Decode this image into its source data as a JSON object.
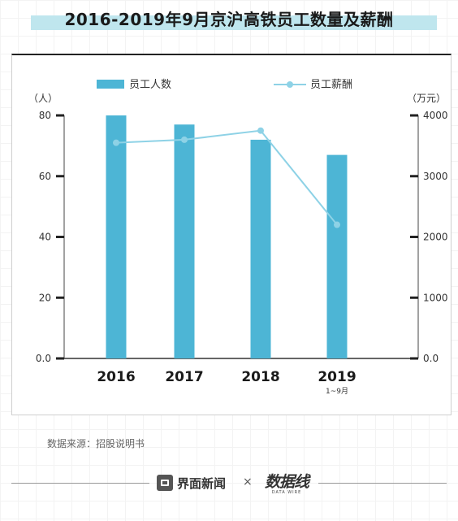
{
  "header": {
    "title": "2016-2019年9月京沪高铁员工数量及薪酬"
  },
  "chart_data": {
    "type": "bar",
    "categories": [
      "2016",
      "2017",
      "2018",
      "2019"
    ],
    "category_sublabels": [
      "",
      "",
      "",
      "1~9月"
    ],
    "series": [
      {
        "name": "员工人数",
        "type": "bar",
        "axis": "left",
        "values": [
          80,
          77,
          72,
          67
        ],
        "color": "#4db5d5"
      },
      {
        "name": "员工薪酬",
        "type": "line",
        "axis": "right",
        "values": [
          3550,
          3600,
          3750,
          2200
        ],
        "color": "#8ed2e6"
      }
    ],
    "left_axis": {
      "unit": "（人）",
      "ticks": [
        "0.0",
        "20",
        "40",
        "60",
        "80"
      ],
      "ylim": [
        0,
        80
      ]
    },
    "right_axis": {
      "unit": "（万元）",
      "ticks": [
        "0.0",
        "1000",
        "2000",
        "3000",
        "4000"
      ],
      "ylim": [
        0,
        4000
      ]
    },
    "legend_position": "top",
    "grid": false
  },
  "footer": {
    "source": "数据来源：招股说明书",
    "brand_1": "界面新闻",
    "separator": "×",
    "brand_2": "数据线",
    "brand_2_sub": "DATA WIRE"
  }
}
